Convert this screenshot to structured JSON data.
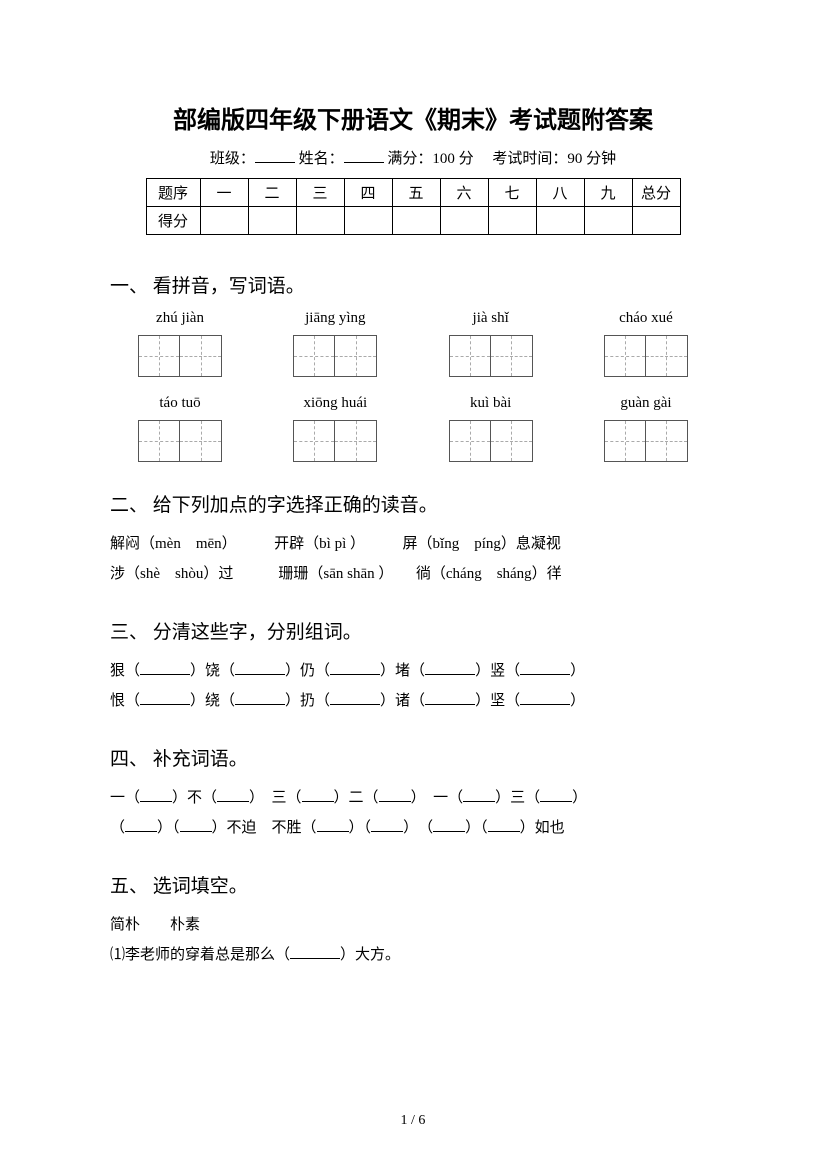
{
  "title": "部编版四年级下册语文《期末》考试题附答案",
  "info": {
    "class_label": "班级：",
    "name_label": "姓名：",
    "full_score_label": "满分：",
    "full_score": "100 分",
    "exam_time_label": "考试时间：",
    "exam_time": "90 分钟"
  },
  "score_table": {
    "header": [
      "题序",
      "一",
      "二",
      "三",
      "四",
      "五",
      "六",
      "七",
      "八",
      "九",
      "总分"
    ],
    "row_label": "得分"
  },
  "sections": {
    "s1": {
      "title": "一、 看拼音，写词语。",
      "row1": [
        "zhú jiàn",
        "jiāng yìng",
        "jià shǐ",
        "cháo xué"
      ],
      "row2": [
        "táo tuō",
        "xiōng huái",
        "kuì bài",
        "guàn gài"
      ]
    },
    "s2": {
      "title": "二、 给下列加点的字选择正确的读音。",
      "line1_a": "解闷（mèn　mēn）",
      "line1_b": "开辟（bì pì ）",
      "line1_c": "屏（bǐng　píng）息凝视",
      "line2_a": "涉（shè　shòu）过",
      "line2_b": "珊珊（sān shān ）",
      "line2_c": "徜（cháng　sháng）徉"
    },
    "s3": {
      "title": "三、 分清这些字，分别组词。",
      "line1": [
        "狠（",
        "）饶（",
        "）仍（",
        "）堵（",
        "）竖（",
        "）"
      ],
      "line2": [
        "恨（",
        "）绕（",
        "）扔（",
        "）诸（",
        "）坚（",
        "）"
      ]
    },
    "s4": {
      "title": "四、 补充词语。",
      "line1": [
        "一（",
        "）不（",
        "）　三（",
        "）二（",
        "）　一（",
        "）三（",
        "）"
      ],
      "line2": [
        "（",
        "）（",
        "）不迫　不胜（",
        "）（",
        "）　（",
        "）（",
        "）如也"
      ]
    },
    "s5": {
      "title": "五、 选词填空。",
      "words": "简朴　　朴素",
      "item1": "⑴李老师的穿着总是那么（",
      "item1_end": "）大方。"
    }
  },
  "page_number": "1 / 6",
  "colors": {
    "background": "#ffffff",
    "text": "#000000",
    "box_border": "#555555",
    "dashed": "#aaaaaa"
  }
}
